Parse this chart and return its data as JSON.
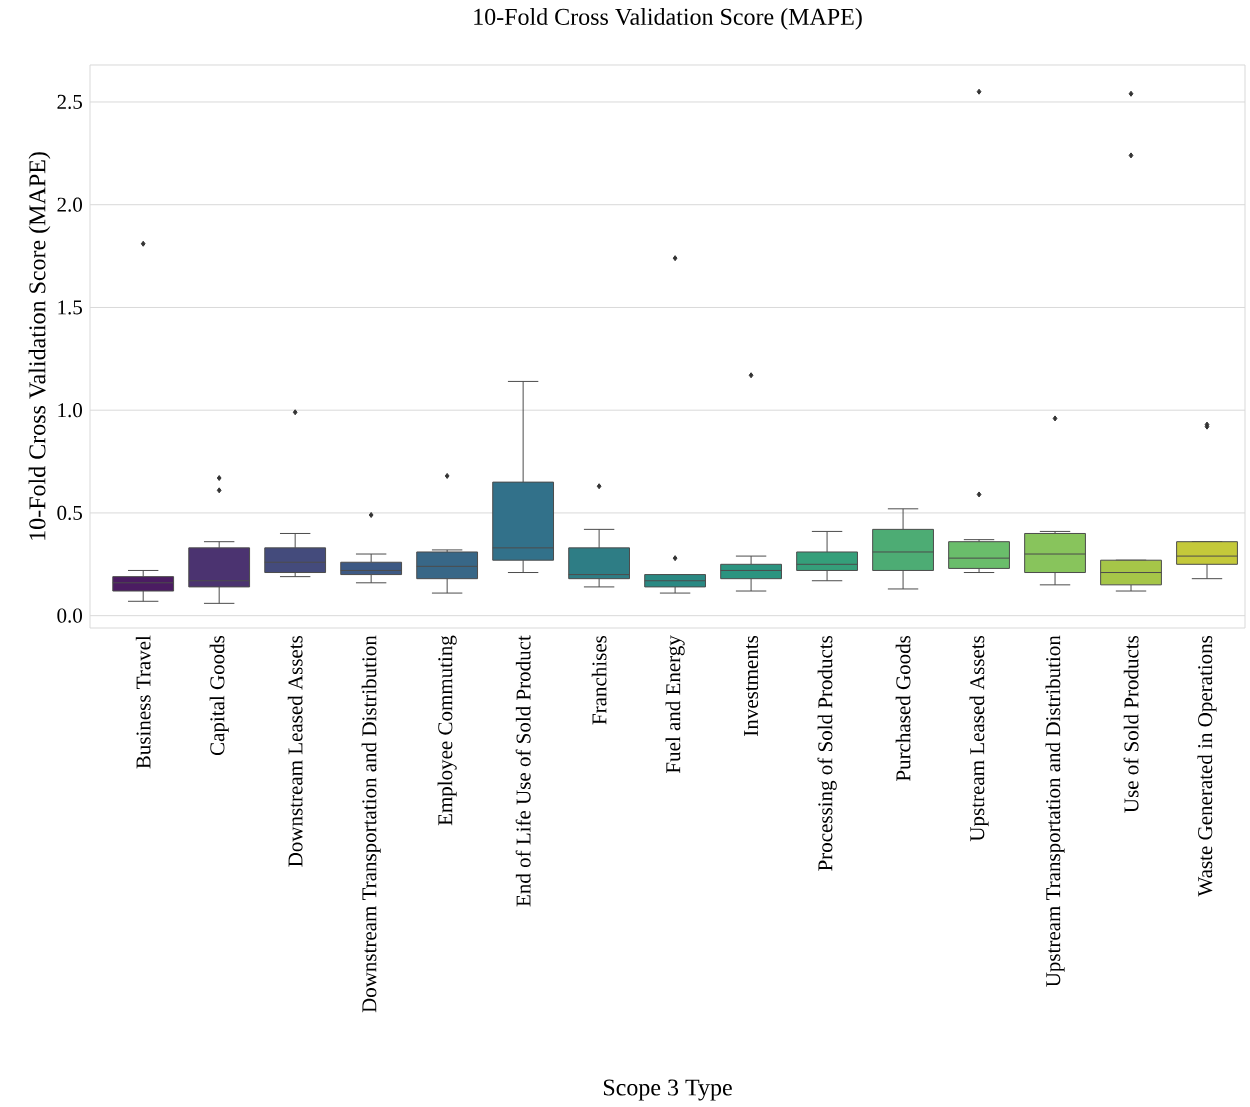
{
  "chart_data": {
    "type": "box",
    "title": "10-Fold Cross Validation Score (MAPE)",
    "xlabel": "Scope 3 Type",
    "ylabel": "10-Fold Cross Validation Score (MAPE)",
    "categories": [
      "Business Travel",
      "Capital Goods",
      "Downstream Leased Assets",
      "Downstream Transportation and Distribution",
      "Employee Commuting",
      "End of Life Use of Sold Product",
      "Franchises",
      "Fuel and Energy",
      "Investments",
      "Processing of Sold Products",
      "Purchased Goods",
      "Upstream Leased Assets",
      "Upstream Transportation and Distribution",
      "Use of Sold Products",
      "Waste Generated in Operations"
    ],
    "boxes": [
      {
        "low": 0.07,
        "q1": 0.12,
        "median": 0.16,
        "q3": 0.19,
        "high": 0.22,
        "outliers": [
          1.81
        ]
      },
      {
        "low": 0.06,
        "q1": 0.14,
        "median": 0.17,
        "q3": 0.33,
        "high": 0.36,
        "outliers": [
          0.61,
          0.67
        ]
      },
      {
        "low": 0.19,
        "q1": 0.21,
        "median": 0.26,
        "q3": 0.33,
        "high": 0.4,
        "outliers": [
          0.99
        ]
      },
      {
        "low": 0.16,
        "q1": 0.2,
        "median": 0.22,
        "q3": 0.26,
        "high": 0.3,
        "outliers": [
          0.49
        ]
      },
      {
        "low": 0.11,
        "q1": 0.18,
        "median": 0.24,
        "q3": 0.31,
        "high": 0.32,
        "outliers": [
          0.68
        ]
      },
      {
        "low": 0.21,
        "q1": 0.27,
        "median": 0.33,
        "q3": 0.65,
        "high": 1.14
      },
      {
        "low": 0.14,
        "q1": 0.18,
        "median": 0.2,
        "q3": 0.33,
        "high": 0.42,
        "outliers": [
          0.63
        ]
      },
      {
        "low": 0.11,
        "q1": 0.14,
        "median": 0.17,
        "q3": 0.2,
        "high": 0.2,
        "outliers": [
          0.28,
          1.74
        ]
      },
      {
        "low": 0.12,
        "q1": 0.18,
        "median": 0.22,
        "q3": 0.25,
        "high": 0.29,
        "outliers": [
          1.17
        ]
      },
      {
        "low": 0.17,
        "q1": 0.22,
        "median": 0.25,
        "q3": 0.31,
        "high": 0.41
      },
      {
        "low": 0.13,
        "q1": 0.22,
        "median": 0.31,
        "q3": 0.42,
        "high": 0.52
      },
      {
        "low": 0.21,
        "q1": 0.23,
        "median": 0.28,
        "q3": 0.36,
        "high": 0.37,
        "outliers": [
          0.59,
          2.55
        ]
      },
      {
        "low": 0.15,
        "q1": 0.21,
        "median": 0.3,
        "q3": 0.4,
        "high": 0.41,
        "outliers": [
          0.96
        ]
      },
      {
        "low": 0.12,
        "q1": 0.15,
        "median": 0.21,
        "q3": 0.27,
        "high": 0.27,
        "outliers": [
          2.24,
          2.54
        ]
      },
      {
        "low": 0.18,
        "q1": 0.25,
        "median": 0.29,
        "q3": 0.36,
        "high": 0.36,
        "outliers": [
          0.92,
          0.93
        ]
      }
    ],
    "colors": [
      "#4b1c62",
      "#4b3370",
      "#444b7c",
      "#3d5984",
      "#386787",
      "#32718a",
      "#2e7d85",
      "#2a8983",
      "#2b9480",
      "#359f7a",
      "#4dac74",
      "#6abd6b",
      "#88c45c",
      "#a6c648",
      "#c4c93a"
    ],
    "ylim": [
      -0.06,
      2.68
    ],
    "yticks": [
      {
        "value": 0,
        "label": "0.0"
      },
      0.5,
      {
        "value": 1,
        "label": "1.0"
      },
      1.5,
      {
        "value": 2,
        "label": "2.0"
      },
      2.5
    ],
    "grid": "y"
  }
}
